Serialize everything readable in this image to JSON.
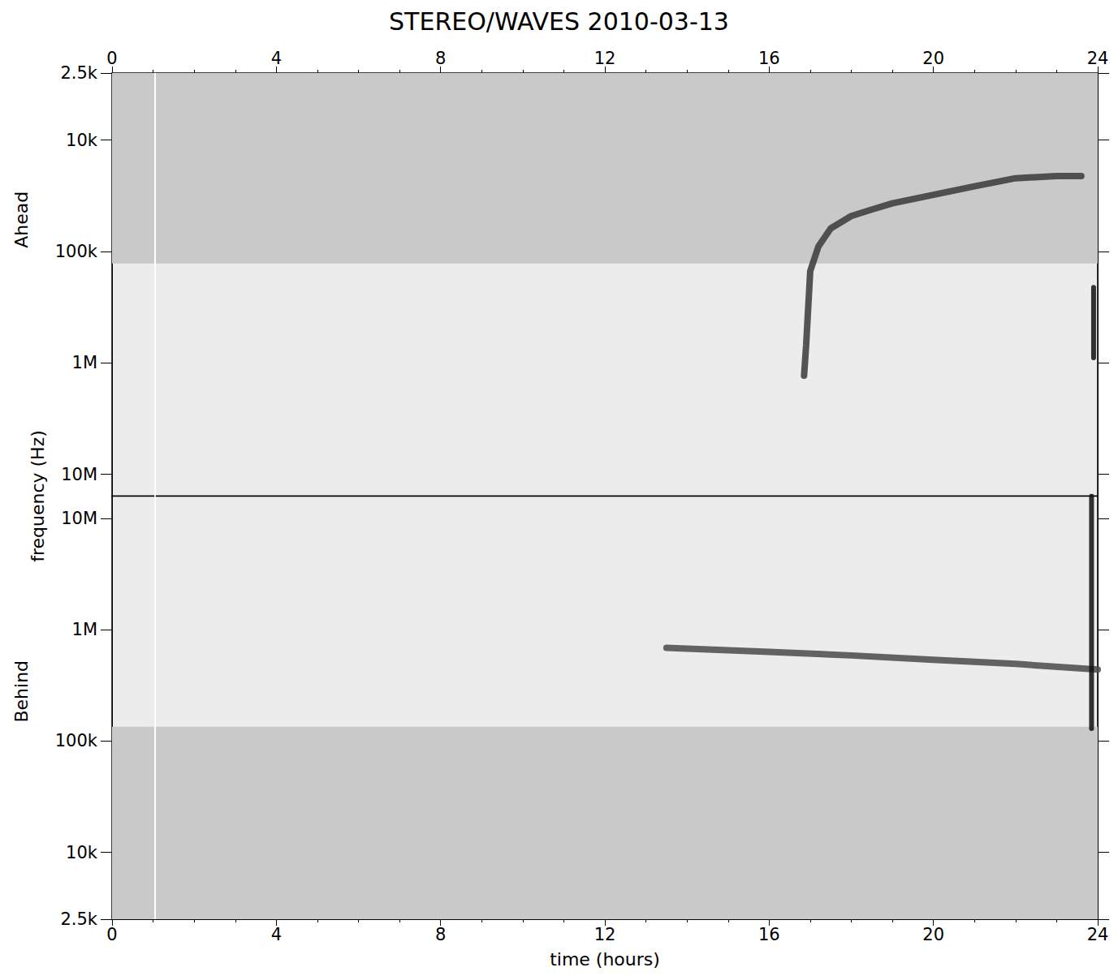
{
  "chart_data": {
    "type": "line",
    "title": "STEREO/WAVES 2010-03-13",
    "xlabel": "time (hours)",
    "ylabel": "frequency (Hz)",
    "log": "y",
    "grid": false,
    "xlim": [
      0,
      24
    ],
    "xticks": [
      0,
      4,
      8,
      12,
      16,
      20,
      24
    ],
    "panels": [
      {
        "name": "Ahead",
        "ylim": [
          2500,
          15700000
        ],
        "yticks": [
          {
            "value": 2500,
            "label": "2.5k"
          },
          {
            "value": 10000,
            "label": "10k"
          },
          {
            "value": 100000,
            "label": "100k"
          },
          {
            "value": 1000000,
            "label": "1M"
          },
          {
            "value": 10000000,
            "label": "10M"
          }
        ],
        "noise_band": [
          2500,
          128000
        ],
        "data_gap": 1.05,
        "series": [
          {
            "color": "#3a3a3a",
            "x": [
              16.85,
              16.9,
              17.0,
              17.2,
              17.5,
              18,
              18.5,
              19,
              20,
              21,
              22,
              23,
              23.6
            ],
            "values": [
              1300000,
              700000,
              150000,
              90000,
              62000,
              48000,
              42000,
              37000,
              31000,
              26000,
              22000,
              21000,
              21000
            ]
          },
          {
            "color": "#111111",
            "x": [
              23.9,
              23.9
            ],
            "values": [
              210000,
              900000
            ]
          }
        ]
      },
      {
        "name": "Behind",
        "ylim": [
          2500,
          16000000
        ],
        "yticks": [
          {
            "value": 2500,
            "label": "2.5k"
          },
          {
            "value": 10000,
            "label": "10k"
          },
          {
            "value": 100000,
            "label": "100k"
          },
          {
            "value": 1000000,
            "label": "1M"
          },
          {
            "value": 10000000,
            "label": "10M"
          }
        ],
        "noise_band": [
          2500,
          135000
        ],
        "data_gap": 1.05,
        "series": [
          {
            "color": "#4a4a4a",
            "x": [
              13.5,
              14,
              16,
              18,
              20,
              22,
              24
            ],
            "values": [
              690000,
              680000,
              635000,
              590000,
              540000,
              495000,
              440000
            ]
          },
          {
            "color": "#111111",
            "x": [
              23.85,
              23.85
            ],
            "values": [
              16000000,
              130000
            ]
          }
        ]
      }
    ]
  }
}
